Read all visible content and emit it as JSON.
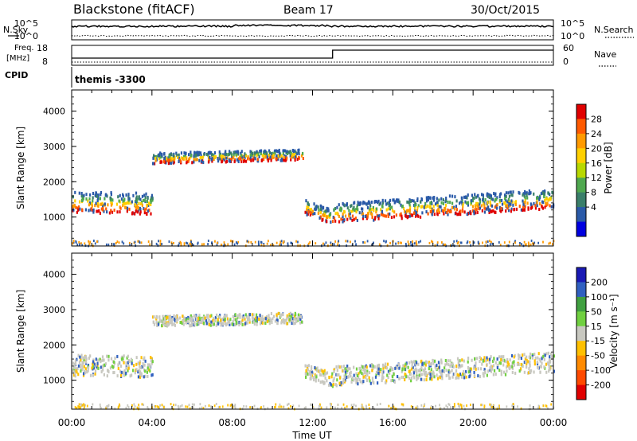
{
  "header": {
    "station": "Blackstone (fitACF)",
    "beam": "Beam 17",
    "date": "30/Oct/2015"
  },
  "noise_panel": {
    "left_label": "N.Sky",
    "right_label": "N.Search",
    "left_ticks": [
      "10^5",
      "10^0"
    ],
    "right_ticks": [
      "10^5",
      "10^0"
    ]
  },
  "freq_panel": {
    "left_label_1": "Freq.",
    "left_label_2": "[MHz]",
    "right_label": "Nave",
    "left_ticks": [
      "18",
      "8"
    ],
    "right_ticks": [
      "60",
      "0"
    ],
    "freq_step_time_hours": 13.0
  },
  "cpid": {
    "label": "CPID",
    "value": "themis -3300"
  },
  "chart_data": [
    {
      "type": "heatmap",
      "name": "power",
      "ylabel": "Slant Range [km]",
      "ylim": [
        180,
        4600
      ],
      "xlim_hours": [
        0,
        24
      ],
      "y_ticks": [
        "1000",
        "2000",
        "3000",
        "4000"
      ],
      "colorbar_label": "Power [dB]",
      "colorbar_ticks": [
        "28",
        "24",
        "20",
        "16",
        "12",
        "8",
        "4"
      ],
      "colorbar_colors": [
        "#e00000",
        "#ff5a00",
        "#ff9a00",
        "#ffd000",
        "#b8d800",
        "#4fa84f",
        "#3a7f6a",
        "#2a5aa8",
        "#0000e0"
      ],
      "echo_bands": [
        {
          "t0": 0.0,
          "t1": 4.0,
          "r_start": 1300,
          "r_end": 1250,
          "width": 600
        },
        {
          "t0": 4.0,
          "t1": 11.5,
          "r_start": 2600,
          "r_end": 2700,
          "width": 300
        },
        {
          "t0": 11.6,
          "t1": 13.0,
          "r_start": 1200,
          "r_end": 900,
          "width": 400
        },
        {
          "t0": 13.0,
          "t1": 24.0,
          "r_start": 1000,
          "r_end": 1400,
          "width": 550
        }
      ]
    },
    {
      "type": "heatmap",
      "name": "velocity",
      "ylabel": "Slant Range [km]",
      "ylim": [
        180,
        4600
      ],
      "xlim_hours": [
        0,
        24
      ],
      "y_ticks": [
        "1000",
        "2000",
        "3000",
        "4000"
      ],
      "colorbar_label": "Velocity [m s⁻¹]",
      "colorbar_ticks": [
        "200",
        "100",
        "50",
        "15",
        "-15",
        "-50",
        "-100",
        "-200"
      ],
      "colorbar_colors": [
        "#1a1ab4",
        "#3060c0",
        "#40a040",
        "#70d040",
        "#c8c8c0",
        "#ffc000",
        "#ff8a00",
        "#ff4a00",
        "#e00000"
      ]
    }
  ],
  "x_axis": {
    "label": "Time UT",
    "ticks": [
      "00:00",
      "04:00",
      "08:00",
      "12:00",
      "16:00",
      "20:00",
      "00:00"
    ]
  }
}
